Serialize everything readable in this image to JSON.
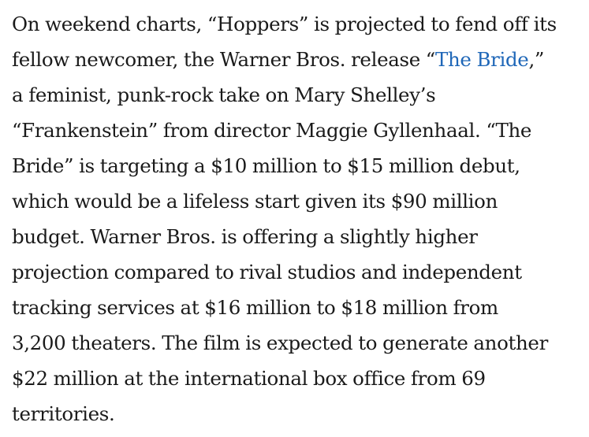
{
  "article": {
    "paragraph": {
      "line_1": "On weekend charts, “Hoppers” is projected to fend off its",
      "line_2_before_link": "fellow newcomer, the Warner Bros. release “",
      "link_text": "The Bride",
      "line_2_after_link": ",”",
      "line_3": "a feminist, punk-rock take on Mary Shelley’s",
      "line_4": "“Frankenstein” from director Maggie Gyllenhaal. “The",
      "line_5": "Bride” is targeting a $10 million to $15 million debut,",
      "line_6": "which would be a lifeless start given its $90 million",
      "line_7": "budget. Warner Bros. is offering a slightly higher",
      "line_8": "projection compared to rival studios and independent",
      "line_9": "tracking services at $16 million to $18 million from",
      "line_10": "3,200 theaters. The film is expected to generate another",
      "line_11": "$22 million at the international box office from 69",
      "line_12": "territories."
    },
    "link_color": "#1f67b8",
    "text_color": "#1a1a1a"
  }
}
